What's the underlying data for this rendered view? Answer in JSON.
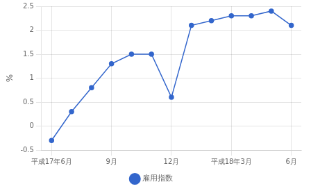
{
  "chart_data": {
    "type": "line",
    "ylabel": "%",
    "categories": [
      "平成17年6月",
      null,
      null,
      "9月",
      null,
      null,
      "12月",
      null,
      null,
      "平成18年3月",
      null,
      null,
      "6月"
    ],
    "series": [
      {
        "name": "雇用指数",
        "color": "#3366CC",
        "marker": "circle",
        "values": [
          -0.3,
          0.3,
          0.8,
          1.3,
          1.5,
          1.5,
          0.6,
          2.1,
          2.2,
          2.3,
          2.3,
          2.4,
          2.1
        ]
      }
    ],
    "ylim": [
      -0.5,
      2.5
    ],
    "yticks": [
      -0.5,
      0,
      0.5,
      1,
      1.5,
      2,
      2.5
    ],
    "grid": true,
    "legend": "bottom"
  }
}
